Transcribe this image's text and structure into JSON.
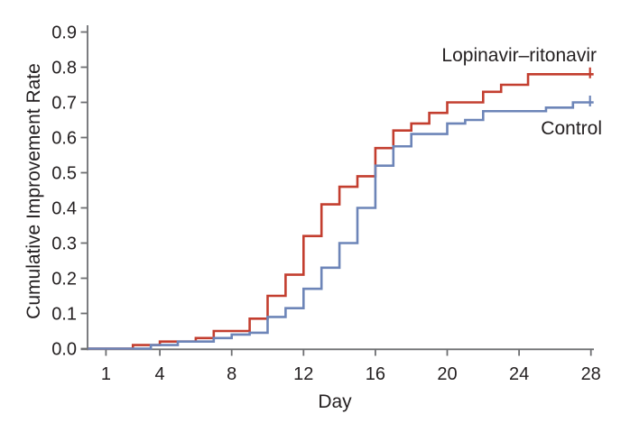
{
  "chart_data": {
    "type": "line",
    "style": "step",
    "title": "",
    "xlabel": "Day",
    "ylabel": "Cumulative Improvement Rate",
    "xlim": [
      0,
      28.3
    ],
    "ylim": [
      0,
      0.92
    ],
    "grid": false,
    "legend_position": "inline-annotations",
    "x_ticks": [
      {
        "value": 1,
        "label": "1"
      },
      {
        "value": 4,
        "label": "4"
      },
      {
        "value": 8,
        "label": "8"
      },
      {
        "value": 12,
        "label": "12"
      },
      {
        "value": 16,
        "label": "16"
      },
      {
        "value": 20,
        "label": "20"
      },
      {
        "value": 24,
        "label": "24"
      },
      {
        "value": 28,
        "label": "28"
      }
    ],
    "y_ticks": [
      {
        "value": 0.0,
        "label": "0.0"
      },
      {
        "value": 0.1,
        "label": "0.1"
      },
      {
        "value": 0.2,
        "label": "0.2"
      },
      {
        "value": 0.3,
        "label": "0.3"
      },
      {
        "value": 0.4,
        "label": "0.4"
      },
      {
        "value": 0.5,
        "label": "0.5"
      },
      {
        "value": 0.6,
        "label": "0.6"
      },
      {
        "value": 0.7,
        "label": "0.7"
      },
      {
        "value": 0.8,
        "label": "0.8"
      },
      {
        "value": 0.9,
        "label": "0.9"
      }
    ],
    "series": [
      {
        "name": "Lopinavir–ritonavir",
        "color": "#c33e2f",
        "censored_at_day": 28,
        "final_value": 0.78,
        "steps": [
          [
            2.5,
            0.01
          ],
          [
            4,
            0.02
          ],
          [
            6,
            0.03
          ],
          [
            7,
            0.05
          ],
          [
            9,
            0.085
          ],
          [
            10,
            0.15
          ],
          [
            11,
            0.21
          ],
          [
            12,
            0.32
          ],
          [
            13,
            0.41
          ],
          [
            14,
            0.46
          ],
          [
            15,
            0.49
          ],
          [
            16,
            0.57
          ],
          [
            17,
            0.62
          ],
          [
            18,
            0.64
          ],
          [
            19,
            0.67
          ],
          [
            20,
            0.7
          ],
          [
            22,
            0.73
          ],
          [
            23,
            0.75
          ],
          [
            24.5,
            0.78
          ]
        ]
      },
      {
        "name": "Control",
        "color": "#6d85b8",
        "censored_at_day": 28,
        "final_value": 0.7,
        "steps": [
          [
            3.5,
            0.01
          ],
          [
            5,
            0.02
          ],
          [
            7,
            0.03
          ],
          [
            8,
            0.04
          ],
          [
            9,
            0.045
          ],
          [
            10,
            0.09
          ],
          [
            11,
            0.115
          ],
          [
            12,
            0.17
          ],
          [
            13,
            0.23
          ],
          [
            14,
            0.3
          ],
          [
            15,
            0.4
          ],
          [
            16,
            0.52
          ],
          [
            17,
            0.575
          ],
          [
            18,
            0.61
          ],
          [
            20,
            0.64
          ],
          [
            21,
            0.65
          ],
          [
            22,
            0.675
          ],
          [
            25.5,
            0.685
          ],
          [
            27,
            0.7
          ]
        ]
      }
    ],
    "colors": {
      "axis": "#6e6f72",
      "text": "#231f20",
      "background": "#ffffff"
    }
  }
}
